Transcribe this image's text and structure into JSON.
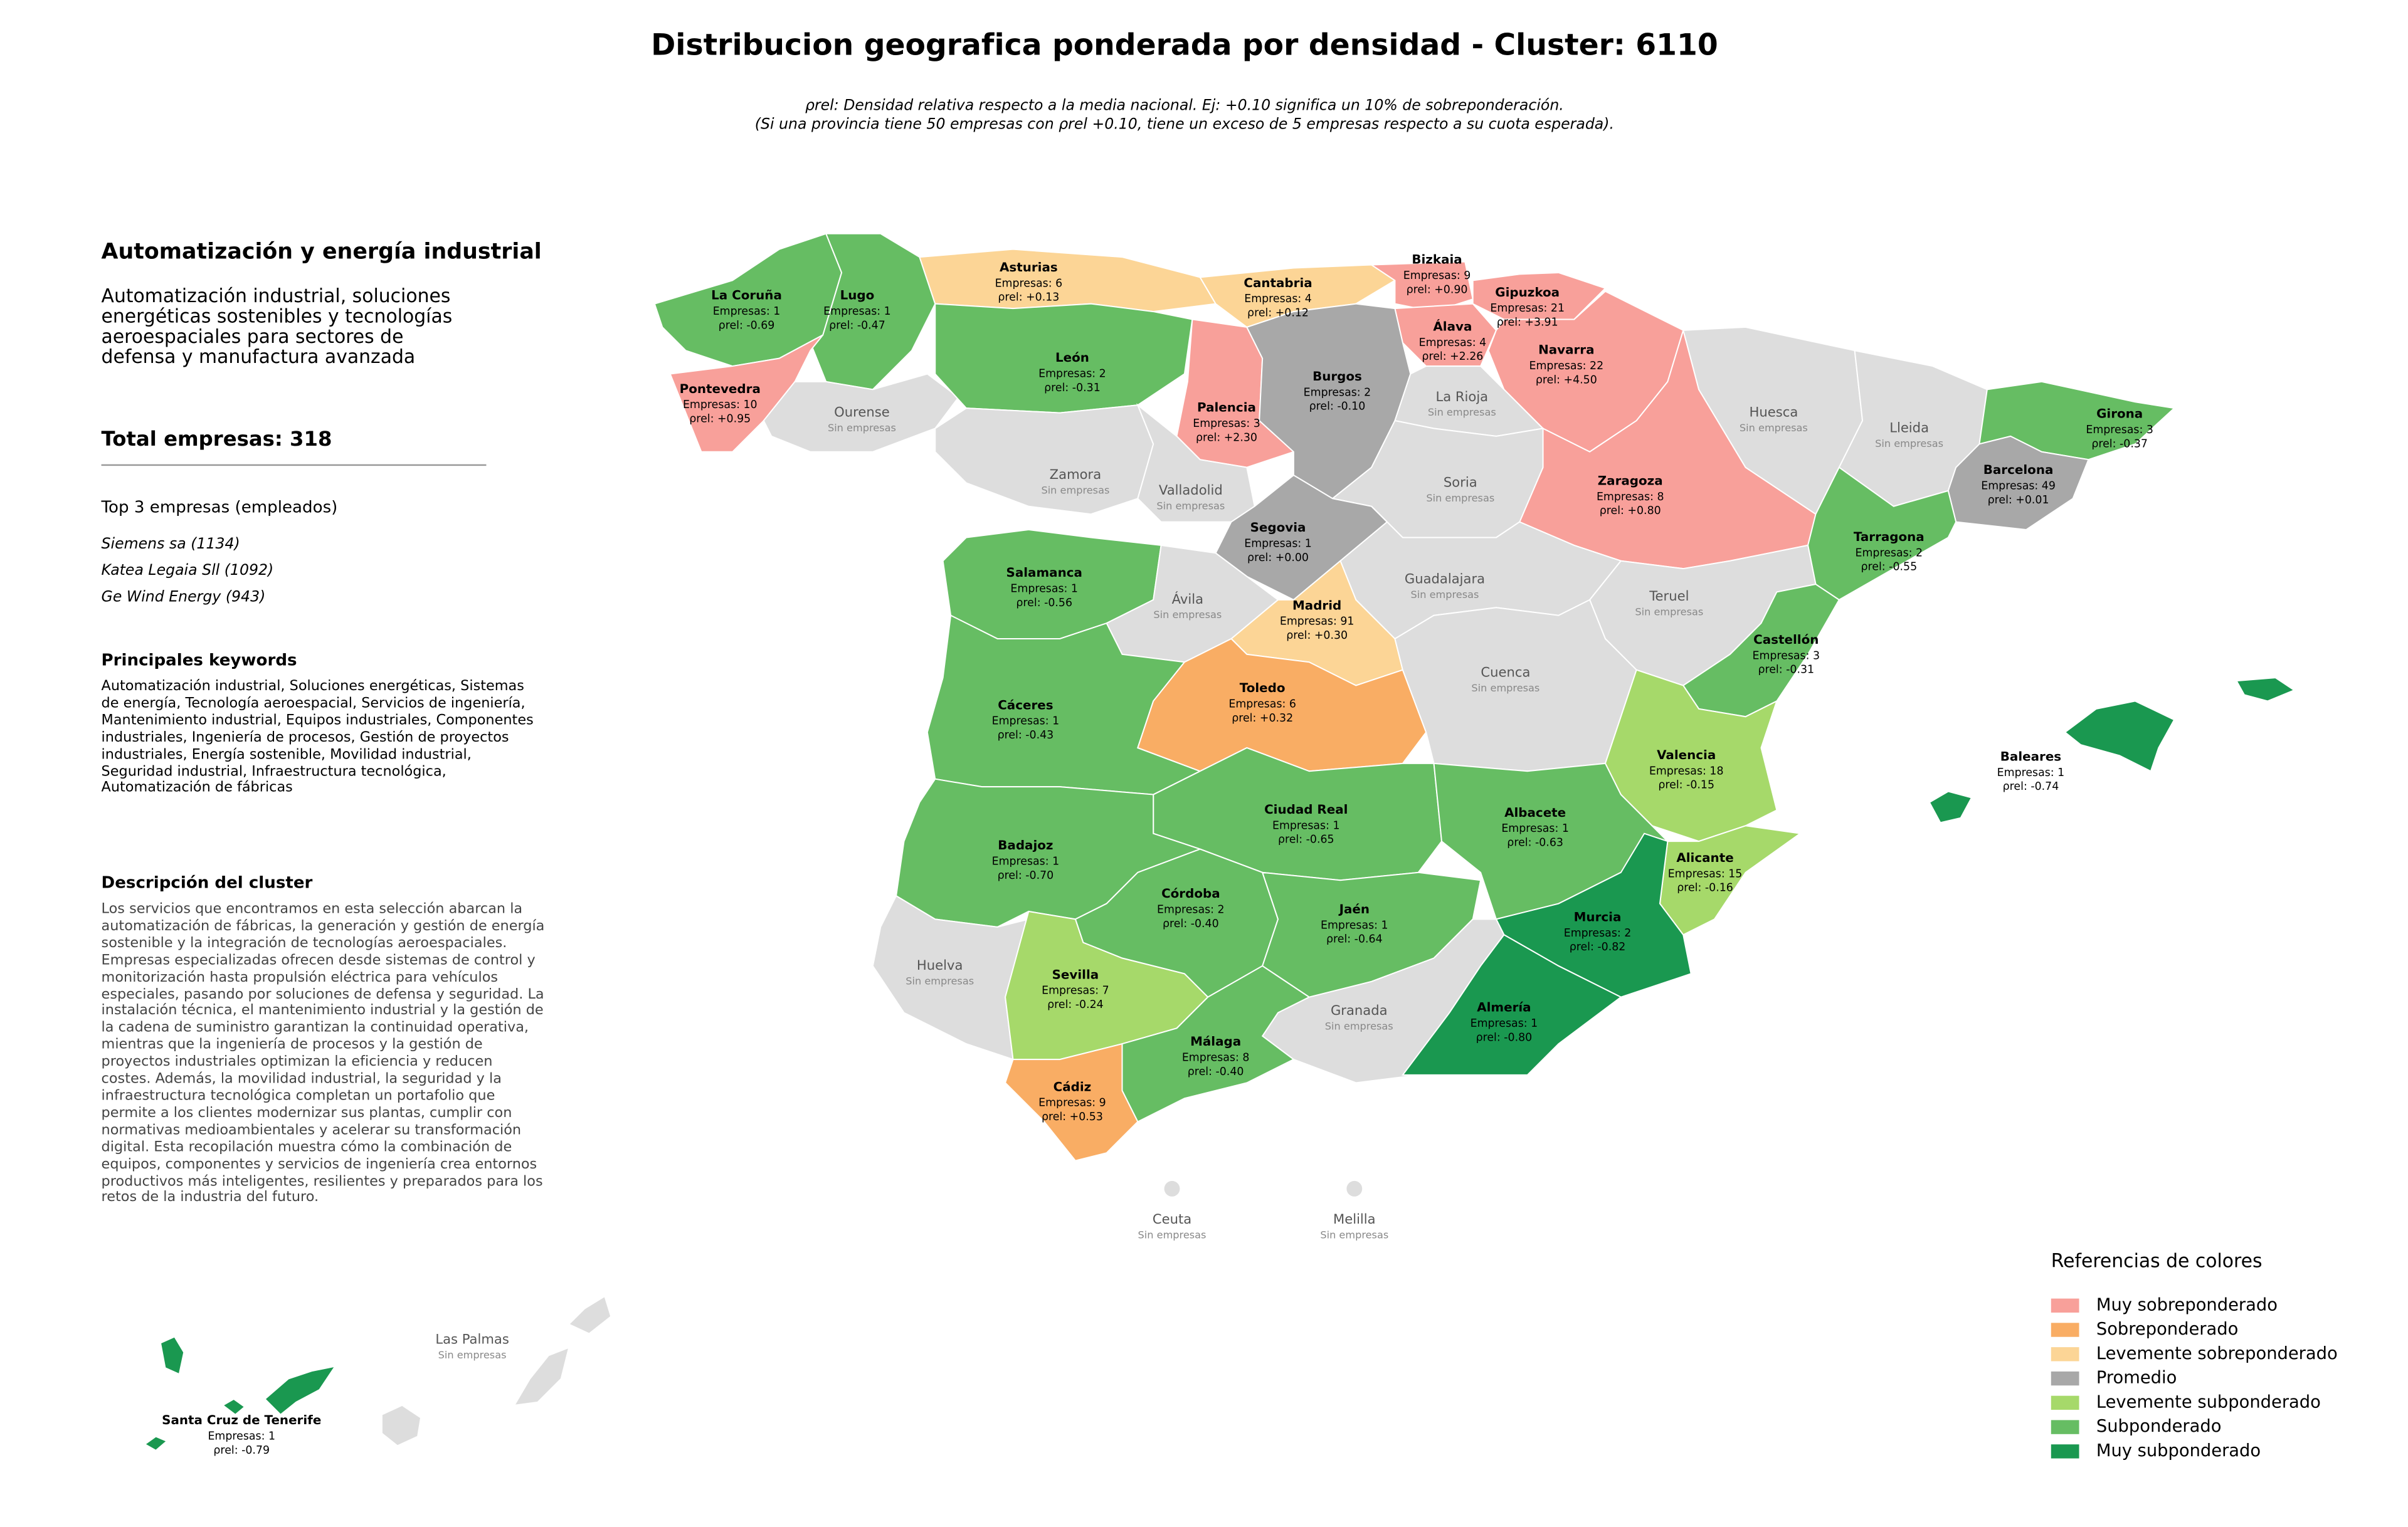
{
  "title": "Distribucion geografica ponderada por densidad - Cluster: 6110",
  "subtitle": [
    "ρrel: Densidad relativa respecto a la media nacional. Ej: +0.10 significa un 10% de sobreponderación.",
    "(Si una provincia tiene 50 empresas con ρrel +0.10, tiene un exceso de 5 empresas respecto a su cuota esperada)."
  ],
  "sidebar": {
    "heading": "Automatización y energía industrial",
    "description": "Automatización industrial, soluciones energéticas sostenibles y tecnologías aeroespaciales para sectores de defensa y manufactura avanzada",
    "total": "Total empresas: 318",
    "top_heading": "Top 3 empresas (empleados)",
    "top": [
      "Siemens sa (1134)",
      "Katea Legaia Sll (1092)",
      "Ge Wind Energy (943)"
    ],
    "keywords_heading": "Principales keywords",
    "keywords": "Automatización industrial, Soluciones energéticas, Sistemas de energía, Tecnología aeroespacial, Servicios de ingeniería, Mantenimiento industrial, Equipos industriales, Componentes industriales, Ingeniería de procesos, Gestión de proyectos industriales, Energía sostenible, Movilidad industrial, Seguridad industrial, Infraestructura tecnológica, Automatización de fábricas",
    "cluster_heading": "Descripción del cluster",
    "cluster_text": "Los servicios que encontramos en esta selección abarcan la automatización de fábricas, la generación y gestión de energía sostenible y la integración de tecnologías aeroespaciales. Empresas especializadas ofrecen desde sistemas de control y monitorización hasta propulsión eléctrica para vehículos especiales, pasando por soluciones de defensa y seguridad. La instalación técnica, el mantenimiento industrial y la gestión de la cadena de suministro garantizan la continuidad operativa, mientras que la ingeniería de procesos y la gestión de proyectos industriales optimizan la eficiencia y reducen costes. Además, la movilidad industrial, la seguridad y la infraestructura tecnológica completan un portafolio que permite a los clientes modernizar sus plantas, cumplir con normativas medioambientales y acelerar su transformación digital. Esta recopilación muestra cómo la combinación de equipos, componentes y servicios de ingeniería crea entornos productivos más inteligentes, resilientes y preparados para los retos de la industria del futuro."
  },
  "no_data_color": "#dddddd",
  "regions": [
    {
      "name": "La Coruña",
      "companies": 1,
      "companies_label": "Empresas: 1",
      "rho": -0.69,
      "rho_label": "ρrel: -0.69",
      "color": "#66bd63"
    },
    {
      "name": "Lugo",
      "companies": 1,
      "companies_label": "Empresas: 1",
      "rho": -0.47,
      "rho_label": "ρrel: -0.47",
      "color": "#66bd63"
    },
    {
      "name": "Pontevedra",
      "companies": 10,
      "companies_label": "Empresas: 10",
      "rho": 0.95,
      "rho_label": "ρrel: +0.95",
      "color": "#f8a09a"
    },
    {
      "name": "Ourense",
      "status": "Sin empresas"
    },
    {
      "name": "Asturias",
      "companies": 6,
      "companies_label": "Empresas: 6",
      "rho": 0.13,
      "rho_label": "ρrel: +0.13",
      "color": "#fcd596"
    },
    {
      "name": "Cantabria",
      "companies": 4,
      "companies_label": "Empresas: 4",
      "rho": 0.12,
      "rho_label": "ρrel: +0.12",
      "color": "#fcd596"
    },
    {
      "name": "Bizkaia",
      "companies": 9,
      "companies_label": "Empresas: 9",
      "rho": 0.9,
      "rho_label": "ρrel: +0.90",
      "color": "#f8a09a"
    },
    {
      "name": "Gipuzkoa",
      "companies": 21,
      "companies_label": "Empresas: 21",
      "rho": 3.91,
      "rho_label": "ρrel: +3.91",
      "color": "#f8a09a"
    },
    {
      "name": "Álava",
      "companies": 4,
      "companies_label": "Empresas: 4",
      "rho": 2.26,
      "rho_label": "ρrel: +2.26",
      "color": "#f8a09a"
    },
    {
      "name": "Navarra",
      "companies": 22,
      "companies_label": "Empresas: 22",
      "rho": 4.5,
      "rho_label": "ρrel: +4.50",
      "color": "#f8a09a"
    },
    {
      "name": "León",
      "companies": 2,
      "companies_label": "Empresas: 2",
      "rho": -0.31,
      "rho_label": "ρrel: -0.31",
      "color": "#66bd63"
    },
    {
      "name": "Palencia",
      "companies": 3,
      "companies_label": "Empresas: 3",
      "rho": 2.3,
      "rho_label": "ρrel: +2.30",
      "color": "#f8a09a"
    },
    {
      "name": "Burgos",
      "companies": 2,
      "companies_label": "Empresas: 2",
      "rho": -0.1,
      "rho_label": "ρrel: -0.10",
      "color": "#a8a8a8"
    },
    {
      "name": "La Rioja",
      "status": "Sin empresas"
    },
    {
      "name": "Zaragoza",
      "companies": 8,
      "companies_label": "Empresas: 8",
      "rho": 0.8,
      "rho_label": "ρrel: +0.80",
      "color": "#f8a09a"
    },
    {
      "name": "Huesca",
      "status": "Sin empresas"
    },
    {
      "name": "Lleida",
      "status": "Sin empresas"
    },
    {
      "name": "Girona",
      "companies": 3,
      "companies_label": "Empresas: 3",
      "rho": -0.37,
      "rho_label": "ρrel: -0.37",
      "color": "#66bd63"
    },
    {
      "name": "Barcelona",
      "companies": 49,
      "companies_label": "Empresas: 49",
      "rho": 0.01,
      "rho_label": "ρrel: +0.01",
      "color": "#a8a8a8"
    },
    {
      "name": "Tarragona",
      "companies": 2,
      "companies_label": "Empresas: 2",
      "rho": -0.55,
      "rho_label": "ρrel: -0.55",
      "color": "#66bd63"
    },
    {
      "name": "Soria",
      "status": "Sin empresas"
    },
    {
      "name": "Zamora",
      "status": "Sin empresas"
    },
    {
      "name": "Valladolid",
      "status": "Sin empresas"
    },
    {
      "name": "Segovia",
      "companies": 1,
      "companies_label": "Empresas: 1",
      "rho": 0.0,
      "rho_label": "ρrel: +0.00",
      "color": "#a8a8a8"
    },
    {
      "name": "Salamanca",
      "companies": 1,
      "companies_label": "Empresas: 1",
      "rho": -0.56,
      "rho_label": "ρrel: -0.56",
      "color": "#66bd63"
    },
    {
      "name": "Ávila",
      "status": "Sin empresas"
    },
    {
      "name": "Guadalajara",
      "status": "Sin empresas"
    },
    {
      "name": "Teruel",
      "status": "Sin empresas"
    },
    {
      "name": "Madrid",
      "companies": 91,
      "companies_label": "Empresas: 91",
      "rho": 0.3,
      "rho_label": "ρrel: +0.30",
      "color": "#fcd596"
    },
    {
      "name": "Cáceres",
      "companies": 1,
      "companies_label": "Empresas: 1",
      "rho": -0.43,
      "rho_label": "ρrel: -0.43",
      "color": "#66bd63"
    },
    {
      "name": "Toledo",
      "companies": 6,
      "companies_label": "Empresas: 6",
      "rho": 0.32,
      "rho_label": "ρrel: +0.32",
      "color": "#f9ad64"
    },
    {
      "name": "Cuenca",
      "status": "Sin empresas"
    },
    {
      "name": "Castellón",
      "companies": 3,
      "companies_label": "Empresas: 3",
      "rho": -0.31,
      "rho_label": "ρrel: -0.31",
      "color": "#66bd63"
    },
    {
      "name": "Valencia",
      "companies": 18,
      "companies_label": "Empresas: 18",
      "rho": -0.15,
      "rho_label": "ρrel: -0.15",
      "color": "#a6d96a"
    },
    {
      "name": "Ciudad Real",
      "companies": 1,
      "companies_label": "Empresas: 1",
      "rho": -0.65,
      "rho_label": "ρrel: -0.65",
      "color": "#66bd63"
    },
    {
      "name": "Albacete",
      "companies": 1,
      "companies_label": "Empresas: 1",
      "rho": -0.63,
      "rho_label": "ρrel: -0.63",
      "color": "#66bd63"
    },
    {
      "name": "Badajoz",
      "companies": 1,
      "companies_label": "Empresas: 1",
      "rho": -0.7,
      "rho_label": "ρrel: -0.70",
      "color": "#66bd63"
    },
    {
      "name": "Alicante",
      "companies": 15,
      "companies_label": "Empresas: 15",
      "rho": -0.16,
      "rho_label": "ρrel: -0.16",
      "color": "#a6d96a"
    },
    {
      "name": "Murcia",
      "companies": 2,
      "companies_label": "Empresas: 2",
      "rho": -0.82,
      "rho_label": "ρrel: -0.82",
      "color": "#1a9850"
    },
    {
      "name": "Córdoba",
      "companies": 2,
      "companies_label": "Empresas: 2",
      "rho": -0.4,
      "rho_label": "ρrel: -0.40",
      "color": "#66bd63"
    },
    {
      "name": "Jaén",
      "companies": 1,
      "companies_label": "Empresas: 1",
      "rho": -0.64,
      "rho_label": "ρrel: -0.64",
      "color": "#66bd63"
    },
    {
      "name": "Huelva",
      "status": "Sin empresas"
    },
    {
      "name": "Sevilla",
      "companies": 7,
      "companies_label": "Empresas: 7",
      "rho": -0.24,
      "rho_label": "ρrel: -0.24",
      "color": "#a6d96a"
    },
    {
      "name": "Granada",
      "status": "Sin empresas"
    },
    {
      "name": "Almería",
      "companies": 1,
      "companies_label": "Empresas: 1",
      "rho": -0.8,
      "rho_label": "ρrel: -0.80",
      "color": "#1a9850"
    },
    {
      "name": "Málaga",
      "companies": 8,
      "companies_label": "Empresas: 8",
      "rho": -0.4,
      "rho_label": "ρrel: -0.40",
      "color": "#66bd63"
    },
    {
      "name": "Cádiz",
      "companies": 9,
      "companies_label": "Empresas: 9",
      "rho": 0.53,
      "rho_label": "ρrel: +0.53",
      "color": "#f9ad64"
    },
    {
      "name": "Baleares",
      "companies": 1,
      "companies_label": "Empresas: 1",
      "rho": -0.74,
      "rho_label": "ρrel: -0.74",
      "color": "#1a9850"
    },
    {
      "name": "Santa Cruz de Tenerife",
      "companies": 1,
      "companies_label": "Empresas: 1",
      "rho": -0.79,
      "rho_label": "ρrel: -0.79",
      "color": "#1a9850"
    },
    {
      "name": "Las Palmas",
      "status": "Sin empresas"
    },
    {
      "name": "Ceuta",
      "status": "Sin empresas"
    },
    {
      "name": "Melilla",
      "status": "Sin empresas"
    }
  ],
  "legend": {
    "title": "Referencias de colores",
    "items": [
      {
        "name": "Muy sobreponderado",
        "color": "#f8a09a"
      },
      {
        "name": "Sobreponderado",
        "color": "#f9ad64"
      },
      {
        "name": "Levemente sobreponderado",
        "color": "#fcd596"
      },
      {
        "name": "Promedio",
        "color": "#a8a8a8"
      },
      {
        "name": "Levemente subponderado",
        "color": "#a6d96a"
      },
      {
        "name": "Subponderado",
        "color": "#66bd63"
      },
      {
        "name": "Muy subponderado",
        "color": "#1a9850"
      }
    ]
  }
}
